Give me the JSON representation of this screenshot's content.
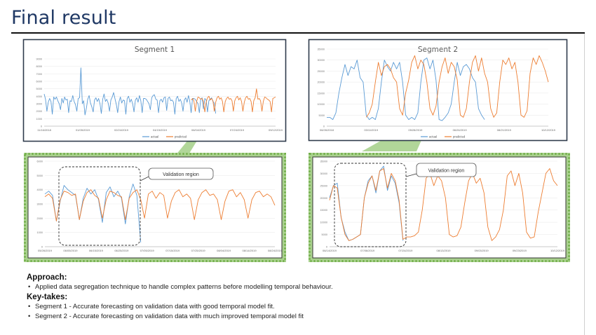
{
  "page_title": "Final result",
  "colors": {
    "actual": "#5b9bd5",
    "predicted": "#ed7d31",
    "callout": "#a9d18e",
    "callout_dots": "#70ad47",
    "frame": "#2f3b4c"
  },
  "legend": {
    "actual": "actual",
    "predicted": "predicted"
  },
  "annotation": "Validation region",
  "chart_data": [
    {
      "type": "line",
      "title": "Segment 1",
      "ylim": [
        0,
        9000
      ],
      "y_ticks": [
        "0",
        "1000",
        "2000",
        "3000",
        "4000",
        "5000",
        "6000",
        "7000",
        "8000",
        "9000"
      ],
      "x_ticks": [
        "11/16/2018",
        "01/05/2019",
        "02/24/2019",
        "04/15/2019",
        "06/04/2019",
        "07/24/2019",
        "09/12/2019"
      ],
      "series": [
        {
          "name": "actual",
          "values": [
            4300,
            3600,
            2000,
            3200,
            3700,
            3300,
            1600,
            3900,
            3600,
            3900,
            3400,
            3000,
            2200,
            3700,
            3100,
            3900,
            3500,
            3600,
            1800,
            3400,
            3300,
            4100,
            3300,
            2900,
            2000,
            3700,
            3800,
            7800,
            3000,
            3400,
            1500,
            2400,
            3600,
            4100,
            3100,
            2600,
            1900,
            3500,
            3800,
            3300,
            3700,
            3000,
            1700,
            3600,
            4300,
            3300,
            3600,
            3100,
            2000,
            3500,
            3900,
            4500,
            3700,
            2900,
            1800,
            3300,
            3900,
            3100,
            3500,
            3400,
            1600,
            3700,
            4000,
            3200,
            3600,
            3000,
            1900,
            3500,
            3800,
            3200,
            4100,
            3400,
            1800,
            3700,
            3700,
            3600,
            3300,
            3000,
            2200,
            3800,
            4100,
            4200,
            3600,
            3500,
            1800,
            3400,
            3600,
            3200,
            3800,
            3900,
            2100,
            3700,
            3900,
            3400,
            3500,
            3200,
            1600,
            3700,
            4000,
            3300,
            3600,
            3100,
            2000,
            3500,
            3800,
            3200,
            4100,
            3300,
            1800,
            3700,
            3700,
            3600,
            3300,
            3000,
            1800,
            3600,
            3800,
            2300,
            3700,
            3500,
            1900,
            3400,
            3600,
            3800,
            3300,
            3100,
            1700
          ]
        },
        {
          "name": "predicted",
          "values": [
            3500,
            3700,
            3400,
            2000,
            3300,
            3900,
            3800,
            3600,
            3700,
            3300,
            1900,
            3200,
            3800,
            4000,
            3500,
            3700,
            3400,
            2000,
            3200,
            3800,
            4000,
            3600,
            3800,
            3300,
            1900,
            3300,
            3700,
            3900,
            3600,
            3700,
            3400,
            2000,
            3400,
            3800,
            4000,
            3500,
            3800,
            3300,
            2000,
            3200,
            3800,
            4000,
            3600,
            3700,
            3300,
            1900,
            3400,
            3800,
            5000,
            3600,
            3700,
            3400,
            2000,
            3300,
            3900,
            3800,
            3600,
            3500,
            3300,
            1900,
            3700,
            3800,
            3900
          ]
        }
      ]
    },
    {
      "type": "line",
      "title": "Segment 2",
      "ylim": [
        0,
        35000
      ],
      "y_ticks": [
        "0",
        "5000",
        "10000",
        "15000",
        "20000",
        "25000",
        "30000",
        "35000"
      ],
      "x_ticks": [
        "06/26/2018",
        "03/11/2019",
        "05/28/2019",
        "06/26/2019",
        "08/21/2019",
        "10/12/2019"
      ],
      "series": [
        {
          "name": "actual",
          "values": [
            4000,
            4000,
            3000,
            6000,
            15000,
            22000,
            28000,
            23000,
            27000,
            26000,
            30000,
            22000,
            20000,
            5000,
            3000,
            4000,
            3000,
            8000,
            20000,
            30000,
            27000,
            25000,
            29000,
            26000,
            29000,
            20000,
            5000,
            3000,
            4000,
            3000,
            6000,
            20000,
            30000,
            31000,
            26000,
            30000,
            21000,
            3000,
            2500,
            4000,
            6000,
            10000,
            20000,
            29000,
            23000,
            27000,
            28000,
            26000,
            22000,
            20000,
            8000,
            5000,
            3000
          ]
        },
        {
          "name": "predicted",
          "values": [
            4000,
            6000,
            10000,
            20000,
            29000,
            23000,
            27000,
            28000,
            26000,
            22000,
            20000,
            8000,
            5000,
            15000,
            21000,
            29000,
            32000,
            26000,
            30000,
            28000,
            20000,
            8000,
            5000,
            9000,
            20000,
            27000,
            31000,
            24000,
            29000,
            27000,
            21000,
            5000,
            4000,
            8000,
            20000,
            29000,
            32000,
            25000,
            31000,
            24000,
            20000,
            8000,
            4000,
            6000,
            20000,
            30000,
            28000,
            31000,
            26000,
            29000,
            20000,
            5000,
            4000,
            7000,
            24000,
            31000,
            28000,
            32000,
            29000,
            25000,
            20000
          ]
        }
      ]
    },
    {
      "type": "line",
      "title": "",
      "ylim": [
        0,
        6000
      ],
      "y_ticks": [
        "0",
        "1000",
        "2000",
        "3000",
        "4000",
        "5000",
        "6000"
      ],
      "x_ticks": [
        "05/26/2019",
        "06/05/2019",
        "06/15/2019",
        "06/25/2019",
        "07/05/2019",
        "07/15/2019",
        "07/25/2019",
        "08/04/2019",
        "08/14/2019",
        "08/24/2019"
      ],
      "series": [
        {
          "name": "actual",
          "values": [
            3700,
            3900,
            3600,
            1800,
            3200,
            4300,
            4000,
            3800,
            3600,
            1900,
            3400,
            4100,
            3700,
            4000,
            3300,
            1700,
            3800,
            4200,
            3500,
            3900,
            3400,
            1600,
            3500,
            4400,
            3600,
            300
          ]
        },
        {
          "name": "predicted",
          "values": [
            3500,
            3700,
            3400,
            1800,
            3300,
            3900,
            3800,
            3600,
            3700,
            1900,
            3200,
            3800,
            4000,
            3600,
            3400,
            2000,
            3300,
            3900,
            3800,
            3600,
            3500,
            1900,
            3400,
            3800,
            4000,
            3300,
            2000,
            3700,
            3900,
            3400,
            3800,
            3600,
            2000,
            3200,
            3800,
            4000,
            3500,
            3700,
            3400,
            1900,
            3300,
            3800,
            4000,
            3600,
            3700,
            3300,
            1900,
            3200,
            3900,
            4000,
            3500,
            3800,
            3300,
            2000,
            3300,
            3800,
            3900,
            3500,
            3700,
            3500,
            2900
          ]
        }
      ]
    },
    {
      "type": "line",
      "title": "",
      "ylim": [
        0,
        35000
      ],
      "y_ticks": [
        "0",
        "5000",
        "10000",
        "15000",
        "20000",
        "25000",
        "30000",
        "35000"
      ],
      "x_ticks": [
        "06/14/2019",
        "07/06/2019",
        "07/24/2019",
        "08/13/2019",
        "09/03/2019",
        "09/23/2019",
        "10/12/2019"
      ],
      "series": [
        {
          "name": "actual",
          "values": [
            20000,
            25000,
            26000,
            12000,
            6000,
            2500,
            3000,
            4000,
            5000,
            20000,
            27000,
            29000,
            22000,
            31000,
            33000,
            23000,
            29000,
            26000,
            18000,
            2500
          ]
        },
        {
          "name": "predicted",
          "values": [
            19000,
            25000,
            24000,
            12000,
            5000,
            2500,
            3000,
            4000,
            5000,
            20000,
            26000,
            29000,
            23000,
            31000,
            32000,
            24000,
            30000,
            27000,
            19000,
            3000,
            4000,
            4000,
            4500,
            6000,
            15000,
            28000,
            30000,
            25000,
            29000,
            27000,
            20000,
            5000,
            4000,
            4500,
            8000,
            18000,
            27000,
            30000,
            26000,
            28000,
            22000,
            8000,
            2500,
            4000,
            7000,
            15000,
            29000,
            31000,
            25000,
            30000,
            22000,
            6000,
            3500,
            4000,
            14000,
            22000,
            30000,
            32000,
            27000,
            25000
          ]
        }
      ]
    }
  ],
  "approach": {
    "heading": "Approach:",
    "bullets": [
      "Applied data segregation technique to handle complex patterns before modelling temporal behaviour."
    ]
  },
  "key_takes": {
    "heading": "Key-takes:",
    "bullets": [
      "Segment 1 - Accurate forecasting on validation data with good temporal model fit.",
      "Segment 2 - Accurate forecasting on validation data with much improved temporal model fit"
    ]
  }
}
